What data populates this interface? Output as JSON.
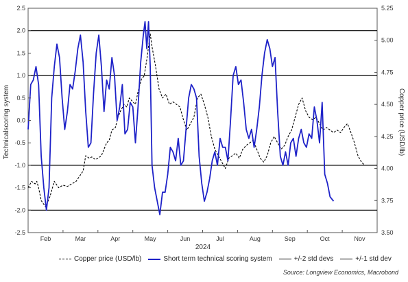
{
  "chart_data": {
    "type": "line",
    "xlabel": "2024",
    "months": [
      "Feb",
      "Mar",
      "Apr",
      "May",
      "Jun",
      "Jul",
      "Aug",
      "Sep",
      "Oct",
      "Nov"
    ],
    "left_axis": {
      "label": "Technicalscoring system",
      "ylim": [
        -2.5,
        2.5
      ],
      "ticks": [
        "2.5",
        "2.0",
        "1.5",
        "1.0",
        "0.5",
        "0.0",
        "-0.5",
        "-1.0",
        "-1.5",
        "-2.0",
        "-2.5"
      ]
    },
    "right_axis": {
      "label": "Copper price (USD/lb)",
      "ylim": [
        3.5,
        5.25
      ],
      "ticks": [
        "5.25",
        "5.00",
        "4.75",
        "4.50",
        "4.25",
        "4.00",
        "3.75",
        "3.50"
      ]
    },
    "reference_lines": {
      "std2": [
        2.0,
        -2.0
      ],
      "std1": [
        1.0,
        -1.0
      ]
    },
    "series": [
      {
        "name": "Copper price (USD/lb)",
        "axis": "right",
        "style": "dashed",
        "color": "#000000",
        "points": [
          [
            0.0,
            3.85
          ],
          [
            0.4,
            3.9
          ],
          [
            0.8,
            3.88
          ],
          [
            1.0,
            3.9
          ],
          [
            1.2,
            3.85
          ],
          [
            1.5,
            3.75
          ],
          [
            2.0,
            3.7
          ],
          [
            2.5,
            3.78
          ],
          [
            3.0,
            3.9
          ],
          [
            3.5,
            3.85
          ],
          [
            4.0,
            3.87
          ],
          [
            4.5,
            3.86
          ],
          [
            5.0,
            3.88
          ],
          [
            5.5,
            3.9
          ],
          [
            6.0,
            3.95
          ],
          [
            6.3,
            3.98
          ],
          [
            6.6,
            4.1
          ],
          [
            7.0,
            4.08
          ],
          [
            7.3,
            4.09
          ],
          [
            7.7,
            4.07
          ],
          [
            8.0,
            4.08
          ],
          [
            8.4,
            4.1
          ],
          [
            8.7,
            4.15
          ],
          [
            9.0,
            4.2
          ],
          [
            9.3,
            4.22
          ],
          [
            9.6,
            4.3
          ],
          [
            10.0,
            4.32
          ],
          [
            10.3,
            4.4
          ],
          [
            10.6,
            4.45
          ],
          [
            11.0,
            4.5
          ],
          [
            11.3,
            4.48
          ],
          [
            11.6,
            4.55
          ],
          [
            12.0,
            4.52
          ],
          [
            12.3,
            4.5
          ],
          [
            12.6,
            4.6
          ],
          [
            13.0,
            4.7
          ],
          [
            13.3,
            4.72
          ],
          [
            13.6,
            4.85
          ],
          [
            13.8,
            4.95
          ],
          [
            14.0,
            5.05
          ],
          [
            14.2,
            4.95
          ],
          [
            14.6,
            4.8
          ],
          [
            15.0,
            4.62
          ],
          [
            15.4,
            4.55
          ],
          [
            15.8,
            4.58
          ],
          [
            16.2,
            4.5
          ],
          [
            16.6,
            4.52
          ],
          [
            17.0,
            4.5
          ],
          [
            17.4,
            4.48
          ],
          [
            17.8,
            4.38
          ],
          [
            18.2,
            4.3
          ],
          [
            18.6,
            4.35
          ],
          [
            19.0,
            4.4
          ],
          [
            19.4,
            4.55
          ],
          [
            19.8,
            4.58
          ],
          [
            20.2,
            4.5
          ],
          [
            20.6,
            4.4
          ],
          [
            21.0,
            4.25
          ],
          [
            21.4,
            4.15
          ],
          [
            21.8,
            4.1
          ],
          [
            22.2,
            4.05
          ],
          [
            22.6,
            4.0
          ],
          [
            23.0,
            4.08
          ],
          [
            23.4,
            4.1
          ],
          [
            23.8,
            4.12
          ],
          [
            24.2,
            4.08
          ],
          [
            24.6,
            4.15
          ],
          [
            25.0,
            4.18
          ],
          [
            25.4,
            4.2
          ],
          [
            25.8,
            4.22
          ],
          [
            26.2,
            4.15
          ],
          [
            26.6,
            4.08
          ],
          [
            27.0,
            4.05
          ],
          [
            27.4,
            4.1
          ],
          [
            27.8,
            4.2
          ],
          [
            28.2,
            4.25
          ],
          [
            28.6,
            4.2
          ],
          [
            29.0,
            4.15
          ],
          [
            29.4,
            4.18
          ],
          [
            29.8,
            4.25
          ],
          [
            30.2,
            4.3
          ],
          [
            30.6,
            4.4
          ],
          [
            31.0,
            4.5
          ],
          [
            31.4,
            4.55
          ],
          [
            31.8,
            4.45
          ],
          [
            32.2,
            4.4
          ],
          [
            32.6,
            4.38
          ],
          [
            33.0,
            4.4
          ],
          [
            33.4,
            4.35
          ],
          [
            33.8,
            4.3
          ],
          [
            34.2,
            4.32
          ],
          [
            34.6,
            4.3
          ],
          [
            35.0,
            4.28
          ],
          [
            35.4,
            4.3
          ],
          [
            35.8,
            4.28
          ],
          [
            36.2,
            4.32
          ],
          [
            36.6,
            4.35
          ],
          [
            37.0,
            4.28
          ],
          [
            37.4,
            4.2
          ],
          [
            37.8,
            4.1
          ],
          [
            38.2,
            4.05
          ],
          [
            38.5,
            4.03
          ]
        ]
      },
      {
        "name": "Short term technical scoring system",
        "axis": "left",
        "style": "solid",
        "color": "#1e22c8",
        "points": [
          [
            0.0,
            -0.2
          ],
          [
            0.3,
            0.8
          ],
          [
            0.6,
            0.9
          ],
          [
            0.9,
            1.2
          ],
          [
            1.2,
            0.8
          ],
          [
            1.5,
            -0.8
          ],
          [
            1.8,
            -1.5
          ],
          [
            2.1,
            -2.0
          ],
          [
            2.4,
            -1.5
          ],
          [
            2.7,
            0.5
          ],
          [
            3.0,
            1.2
          ],
          [
            3.3,
            1.7
          ],
          [
            3.6,
            1.4
          ],
          [
            3.9,
            0.5
          ],
          [
            4.2,
            -0.2
          ],
          [
            4.5,
            0.2
          ],
          [
            4.8,
            0.8
          ],
          [
            5.1,
            0.7
          ],
          [
            5.4,
            1.1
          ],
          [
            5.7,
            1.6
          ],
          [
            6.0,
            1.9
          ],
          [
            6.3,
            1.3
          ],
          [
            6.6,
            0.2
          ],
          [
            6.9,
            -0.6
          ],
          [
            7.2,
            -0.5
          ],
          [
            7.5,
            0.6
          ],
          [
            7.8,
            1.5
          ],
          [
            8.1,
            1.9
          ],
          [
            8.4,
            1.2
          ],
          [
            8.7,
            0.2
          ],
          [
            9.0,
            0.9
          ],
          [
            9.3,
            0.7
          ],
          [
            9.6,
            1.4
          ],
          [
            9.9,
            1.0
          ],
          [
            10.2,
            0.0
          ],
          [
            10.5,
            0.3
          ],
          [
            10.8,
            0.8
          ],
          [
            11.1,
            -0.3
          ],
          [
            11.4,
            -0.2
          ],
          [
            11.7,
            0.4
          ],
          [
            12.0,
            0.3
          ],
          [
            12.3,
            -0.5
          ],
          [
            12.6,
            0.3
          ],
          [
            12.9,
            1.3
          ],
          [
            13.2,
            1.9
          ],
          [
            13.4,
            2.2
          ],
          [
            13.6,
            1.6
          ],
          [
            13.8,
            2.2
          ],
          [
            14.0,
            1.2
          ],
          [
            14.2,
            -1.0
          ],
          [
            14.5,
            -1.5
          ],
          [
            14.8,
            -1.8
          ],
          [
            15.1,
            -2.1
          ],
          [
            15.4,
            -1.6
          ],
          [
            15.7,
            -1.6
          ],
          [
            16.0,
            -1.2
          ],
          [
            16.3,
            -0.6
          ],
          [
            16.6,
            -0.7
          ],
          [
            16.9,
            -0.9
          ],
          [
            17.2,
            -0.4
          ],
          [
            17.5,
            -1.0
          ],
          [
            17.8,
            -0.9
          ],
          [
            18.1,
            -0.2
          ],
          [
            18.4,
            0.5
          ],
          [
            18.7,
            0.8
          ],
          [
            19.0,
            0.7
          ],
          [
            19.3,
            0.5
          ],
          [
            19.6,
            -0.8
          ],
          [
            19.9,
            -1.4
          ],
          [
            20.2,
            -1.8
          ],
          [
            20.5,
            -1.6
          ],
          [
            20.8,
            -1.3
          ],
          [
            21.1,
            -0.9
          ],
          [
            21.4,
            -0.7
          ],
          [
            21.7,
            -1.0
          ],
          [
            22.0,
            -0.4
          ],
          [
            22.3,
            -0.6
          ],
          [
            22.6,
            -0.6
          ],
          [
            22.9,
            -0.9
          ],
          [
            23.2,
            0.0
          ],
          [
            23.5,
            1.0
          ],
          [
            23.8,
            1.2
          ],
          [
            24.1,
            0.8
          ],
          [
            24.4,
            0.9
          ],
          [
            24.7,
            0.4
          ],
          [
            25.0,
            -0.2
          ],
          [
            25.3,
            -0.4
          ],
          [
            25.6,
            -0.2
          ],
          [
            25.9,
            -0.6
          ],
          [
            26.2,
            -0.2
          ],
          [
            26.5,
            0.3
          ],
          [
            26.8,
            1.0
          ],
          [
            27.1,
            1.5
          ],
          [
            27.4,
            1.8
          ],
          [
            27.7,
            1.6
          ],
          [
            28.0,
            1.2
          ],
          [
            28.3,
            1.4
          ],
          [
            28.6,
            0.2
          ],
          [
            28.9,
            -0.8
          ],
          [
            29.2,
            -1.0
          ],
          [
            29.5,
            -0.7
          ],
          [
            29.8,
            -1.0
          ],
          [
            30.1,
            -0.5
          ],
          [
            30.4,
            -0.4
          ],
          [
            30.7,
            -0.8
          ],
          [
            31.0,
            -0.4
          ],
          [
            31.3,
            -0.2
          ],
          [
            31.6,
            -0.5
          ],
          [
            31.9,
            -0.6
          ],
          [
            32.2,
            -0.3
          ],
          [
            32.5,
            -0.4
          ],
          [
            32.8,
            0.3
          ],
          [
            33.1,
            0.0
          ],
          [
            33.4,
            -0.5
          ],
          [
            33.7,
            0.4
          ],
          [
            34.0,
            -1.2
          ],
          [
            34.3,
            -1.4
          ],
          [
            34.6,
            -1.7
          ],
          [
            35.0,
            -1.8
          ]
        ]
      }
    ],
    "legend": [
      {
        "label": "Copper price (USD/lb)",
        "style": "dashed",
        "color": "#000000"
      },
      {
        "label": "Short term technical scoring system",
        "style": "solid",
        "color": "#1e22c8"
      },
      {
        "label": "+/-2 std devs",
        "style": "solid",
        "color": "#000000"
      },
      {
        "label": "+/-1 std dev",
        "style": "solid",
        "color": "#000000"
      }
    ],
    "source": "Source: Longview Economics, Macrobond"
  }
}
